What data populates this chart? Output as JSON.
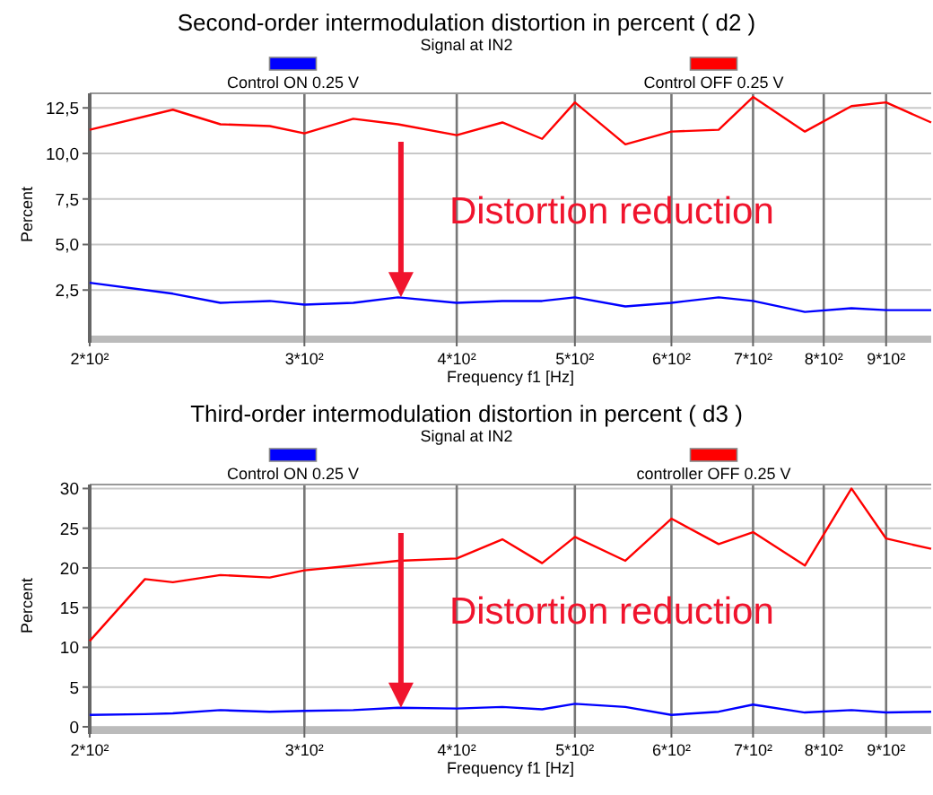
{
  "chart_data": [
    {
      "type": "line",
      "title": "Second-order intermodulation distortion in percent   ( d2 )",
      "subtitle": "Signal at IN2",
      "xlabel": "Frequency f1  [Hz]",
      "ylabel": "Percent",
      "log": "x",
      "grid": true,
      "legend": "top",
      "annotations": [
        {
          "text": "Distortion reduction",
          "x": 360,
          "y": 2.1
        }
      ],
      "xlim": [
        200,
        980
      ],
      "xticks": [
        {
          "value": 200,
          "label": "2*10²"
        },
        {
          "value": 300,
          "label": "3*10²"
        },
        {
          "value": 400,
          "label": "4*10²"
        },
        {
          "value": 500,
          "label": "5*10²"
        },
        {
          "value": 600,
          "label": "6*10²"
        },
        {
          "value": 700,
          "label": "7*10²"
        },
        {
          "value": 800,
          "label": "8*10²"
        },
        {
          "value": 900,
          "label": "9*10²"
        }
      ],
      "ylim": [
        0,
        13.3
      ],
      "yticks": [
        {
          "value": 2.5,
          "label": "2,5"
        },
        {
          "value": 5,
          "label": "5,0"
        },
        {
          "value": 7.5,
          "label": "7,5"
        },
        {
          "value": 10,
          "label": "10,0"
        },
        {
          "value": 12.5,
          "label": "12,5"
        }
      ],
      "x": [
        200,
        234,
        256,
        281,
        300,
        329,
        358,
        400,
        436,
        470,
        500,
        550,
        600,
        656,
        700,
        772,
        843,
        900,
        980
      ],
      "series": [
        {
          "name": "Control ON  0.25 V",
          "color": "#0000ff",
          "values": [
            2.9,
            2.3,
            1.8,
            1.9,
            1.7,
            1.8,
            2.1,
            1.8,
            1.9,
            1.9,
            2.1,
            1.6,
            1.8,
            2.1,
            1.9,
            1.3,
            1.5,
            1.4,
            1.4
          ]
        },
        {
          "name": "Control OFF  0.25 V",
          "color": "#ff0000",
          "values": [
            11.3,
            12.4,
            11.6,
            11.5,
            11.1,
            11.9,
            11.6,
            11.0,
            11.7,
            10.8,
            12.8,
            10.5,
            11.2,
            11.3,
            13.1,
            11.2,
            12.6,
            12.8,
            11.7
          ]
        }
      ]
    },
    {
      "type": "line",
      "title": "Third-order intermodulation distortion in percent  ( d3 )",
      "subtitle": "Signal at IN2",
      "xlabel": "Frequency f1  [Hz]",
      "ylabel": "Percent",
      "log": "x",
      "grid": true,
      "legend": "top",
      "annotations": [
        {
          "text": "Distortion reduction",
          "x": 360,
          "y": 2.4
        }
      ],
      "xlim": [
        200,
        980
      ],
      "xticks": [
        {
          "value": 200,
          "label": "2*10²"
        },
        {
          "value": 300,
          "label": "3*10²"
        },
        {
          "value": 400,
          "label": "4*10²"
        },
        {
          "value": 500,
          "label": "5*10²"
        },
        {
          "value": 600,
          "label": "6*10²"
        },
        {
          "value": 700,
          "label": "7*10²"
        },
        {
          "value": 800,
          "label": "8*10²"
        },
        {
          "value": 900,
          "label": "9*10²"
        }
      ],
      "ylim": [
        0,
        30.5
      ],
      "yticks": [
        0,
        5,
        10,
        15,
        20,
        25,
        30
      ],
      "x": [
        200,
        222,
        234,
        256,
        281,
        300,
        329,
        358,
        400,
        436,
        470,
        500,
        550,
        600,
        656,
        700,
        772,
        843,
        900,
        980
      ],
      "series": [
        {
          "name": "Control ON 0.25 V",
          "color": "#0000ff",
          "values": [
            1.5,
            1.6,
            1.7,
            2.1,
            1.9,
            2.0,
            2.1,
            2.4,
            2.3,
            2.5,
            2.2,
            2.9,
            2.5,
            1.5,
            1.9,
            2.8,
            1.8,
            2.1,
            1.8,
            1.9
          ]
        },
        {
          "name": "controller OFF  0.25 V",
          "color": "#ff0000",
          "values": [
            10.8,
            18.6,
            18.2,
            19.1,
            18.8,
            19.7,
            20.3,
            20.9,
            21.2,
            23.6,
            20.6,
            23.9,
            20.9,
            26.2,
            23.0,
            24.5,
            20.3,
            30,
            23.7,
            22.4
          ]
        }
      ]
    }
  ]
}
